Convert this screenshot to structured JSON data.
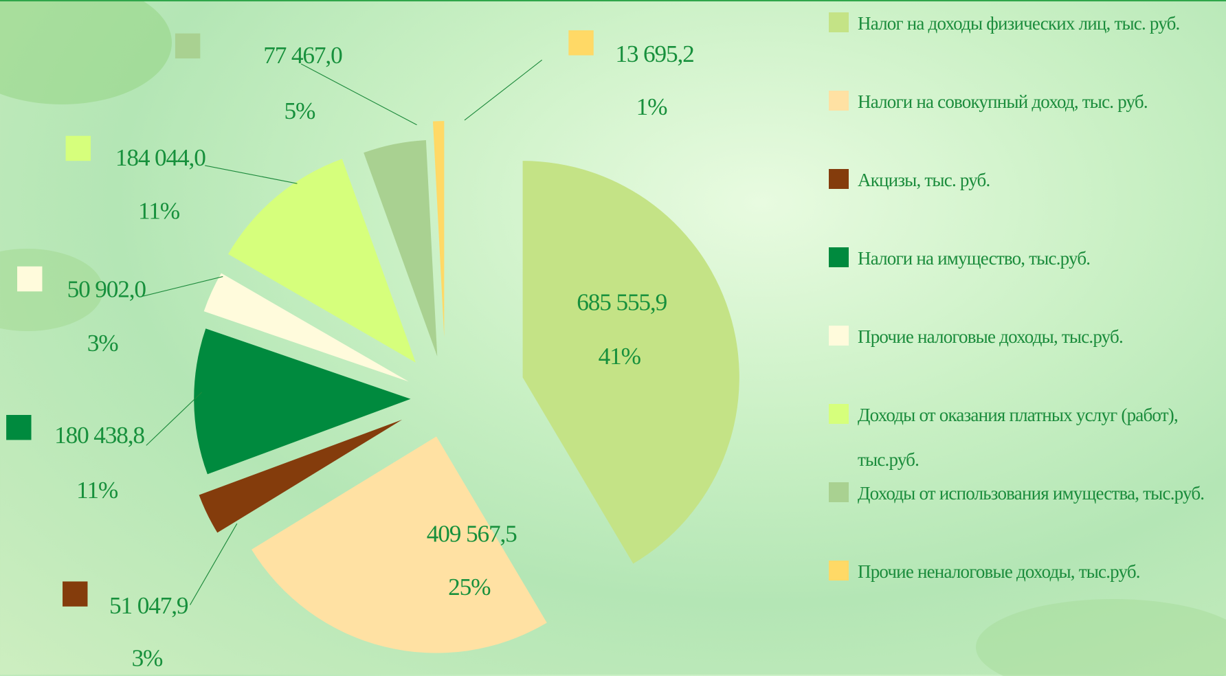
{
  "chart_data": {
    "type": "pie",
    "categories": [
      "Налог на доходы физических лиц, тыс. руб.",
      "Налоги на совокупный доход, тыс. руб.",
      "Акцизы, тыс. руб.",
      "Налоги на имущество, тыс.руб.",
      "Прочие налоговые доходы, тыс.руб.",
      "Доходы от оказания платных услуг (работ), тыс.руб.",
      "Доходы от использования имущества, тыс.руб.",
      "Прочие неналоговые доходы, тыс.руб."
    ],
    "values": [
      685555.9,
      409567.5,
      51047.9,
      180438.8,
      50902.0,
      184044.0,
      77467.0,
      13695.2
    ],
    "value_labels": [
      "685 555,9",
      "409 567,5",
      "51 047,9",
      "180 438,8",
      "50 902,0",
      "184 044,0",
      "77 467,0",
      "13 695,2"
    ],
    "percent_labels": [
      "41%",
      "25%",
      "3%",
      "11%",
      "3%",
      "11%",
      "5%",
      "1%"
    ],
    "colors": [
      "#c4e386",
      "#ffe1a3",
      "#843c0c",
      "#008a3e",
      "#fffbdc",
      "#d6ff7c",
      "#a9d191",
      "#ffd966"
    ],
    "legend": "right"
  }
}
